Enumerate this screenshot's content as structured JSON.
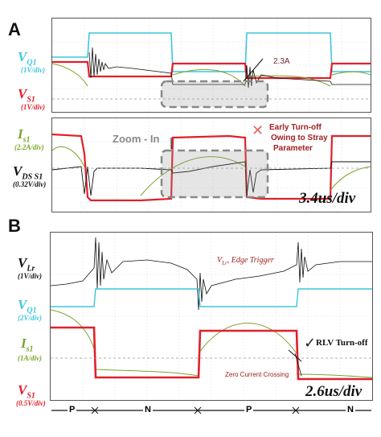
{
  "panel_a": {
    "letter": "A",
    "top_channels": [
      {
        "name": "V",
        "sub": "Q1",
        "scale": "(1V/div)",
        "color": "#3fc6dc"
      },
      {
        "name": "V",
        "sub": "S1",
        "scale": "(1V/div)",
        "color": "#e0202a"
      }
    ],
    "bottom_channels": [
      {
        "name": "I",
        "sub": "s1",
        "scale": "(2.2A/div)",
        "color": "#7aa52a"
      },
      {
        "name": "V",
        "sub": "DS S1",
        "scale": "(0.32V/div)",
        "color": "#111111"
      }
    ],
    "annotation_current": "2.3A",
    "zoom_label": "Zoom - In",
    "warning_text": [
      "Early Turn-off",
      "Owing to Stray",
      "Parameter"
    ],
    "time_div": "3.4us/div"
  },
  "panel_b": {
    "letter": "B",
    "channels": [
      {
        "name": "V",
        "sub": "Lr",
        "scale": "(1V/div)",
        "color": "#111111"
      },
      {
        "name": "V",
        "sub": "Q1",
        "scale": "(2V/div)",
        "color": "#3fc6dc"
      },
      {
        "name": "I",
        "sub": "s1",
        "scale": "(1A/div)",
        "color": "#7aa52a"
      },
      {
        "name": "V",
        "sub": "S1",
        "scale": "(0.5V/div)",
        "color": "#e0202a"
      }
    ],
    "edge_trigger": "V",
    "edge_trigger_sub": "Lr",
    "edge_trigger_rest": ", Edge Trigger",
    "rlv_label": "RLV Turn-off",
    "zero_crossing": "Zero Current Crossing",
    "time_div": "2.6us/div",
    "bottom_axis": [
      "P",
      "N",
      "P",
      "N"
    ]
  },
  "chart_data": [
    {
      "type": "line",
      "title": "",
      "note": "Oscilloscope panel A (top): switching waveforms",
      "series": [
        {
          "name": "VQ1"
        },
        {
          "name": "VS1"
        }
      ]
    },
    {
      "type": "line",
      "title": "",
      "note": "Oscilloscope panel A (bottom): current and drain-source voltage",
      "series": [
        {
          "name": "Is1"
        },
        {
          "name": "VDS S1"
        }
      ]
    },
    {
      "type": "line",
      "title": "",
      "note": "Oscilloscope panel B",
      "series": [
        {
          "name": "VLr"
        },
        {
          "name": "VQ1"
        },
        {
          "name": "Is1"
        },
        {
          "name": "VS1"
        }
      ]
    }
  ]
}
